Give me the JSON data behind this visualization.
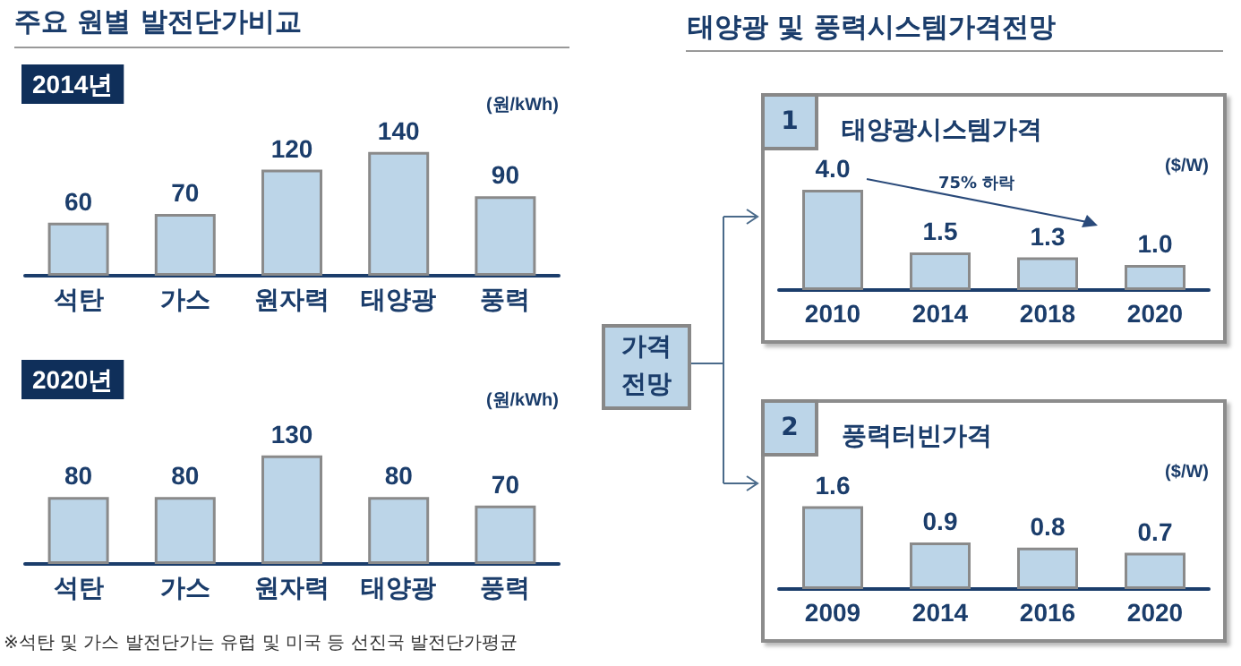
{
  "chart_data": [
    {
      "type": "bar",
      "title": "2014년",
      "ylabel": "(원/kWh)",
      "categories": [
        "석탄",
        "가스",
        "원자력",
        "태양광",
        "풍력"
      ],
      "values": [
        60,
        70,
        120,
        140,
        90
      ],
      "color": "#bcd5e8",
      "data_labels": true,
      "annotations": [
        "주요 원별 발전단가비교"
      ]
    },
    {
      "type": "bar",
      "title": "2020년",
      "ylabel": "(원/kWh)",
      "categories": [
        "석탄",
        "가스",
        "원자력",
        "태양광",
        "풍력"
      ],
      "values": [
        80,
        80,
        130,
        80,
        70
      ],
      "color": "#bcd5e8",
      "data_labels": true,
      "annotations": [
        "※석탄 및 가스 발전단가는 유럽 및 미국 등 선진국 발전단가평균"
      ]
    },
    {
      "type": "bar",
      "title": "태양광시스템가격",
      "ylabel": "($/W)",
      "categories": [
        "2010",
        "2014",
        "2018",
        "2020"
      ],
      "values": [
        4.0,
        1.5,
        1.3,
        1.0
      ],
      "value_labels": [
        "4.0",
        "1.5",
        "1.3",
        "1.0"
      ],
      "color": "#bcd5e8",
      "annotations": [
        "태양광 및 풍력시스템가격전망",
        "가격 전망",
        "1",
        "75% 하락"
      ]
    },
    {
      "type": "bar",
      "title": "풍력터빈가격",
      "ylabel": "($/W)",
      "categories": [
        "2009",
        "2014",
        "2016",
        "2020"
      ],
      "values": [
        1.6,
        0.9,
        0.8,
        0.7
      ],
      "color": "#bcd5e8",
      "data_labels": true,
      "annotations": [
        "2"
      ]
    }
  ]
}
